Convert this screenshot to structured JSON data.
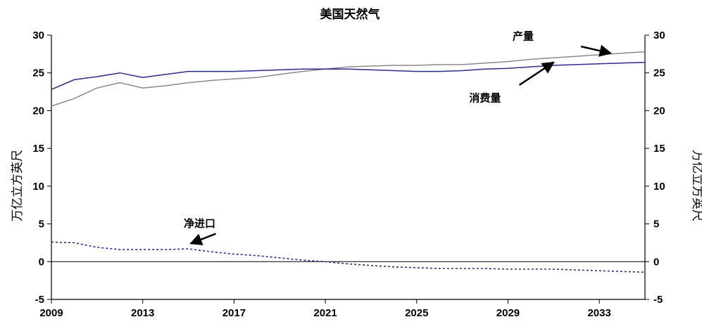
{
  "chart_data": {
    "type": "line",
    "title": "美国天然气",
    "ylabel_left": "万亿立方英尺",
    "ylabel_right": "万亿立方英尺",
    "xlabel": "",
    "ylim": [
      -5,
      30
    ],
    "yticks": [
      "-5",
      "0",
      "5",
      "10",
      "15",
      "20",
      "25",
      "30"
    ],
    "xlim": [
      2009,
      2035
    ],
    "xticks": [
      "2009",
      "2013",
      "2017",
      "2021",
      "2025",
      "2029",
      "2033"
    ],
    "grid": false,
    "x": [
      2009,
      2010,
      2011,
      2012,
      2013,
      2014,
      2015,
      2016,
      2017,
      2018,
      2019,
      2020,
      2021,
      2022,
      2023,
      2024,
      2025,
      2026,
      2027,
      2028,
      2029,
      2030,
      2031,
      2032,
      2033,
      2034,
      2035
    ],
    "series": [
      {
        "name": "产量",
        "color": "#8a8a8a",
        "style": "solid",
        "values": [
          20.6,
          21.6,
          23.0,
          23.7,
          23.0,
          23.3,
          23.7,
          24.0,
          24.2,
          24.4,
          24.8,
          25.2,
          25.5,
          25.8,
          25.9,
          26.0,
          26.0,
          26.1,
          26.1,
          26.3,
          26.5,
          26.8,
          27.0,
          27.2,
          27.4,
          27.6,
          27.8
        ]
      },
      {
        "name": "消费量",
        "color": "#2b2b8a",
        "style": "solid",
        "values": [
          22.8,
          24.1,
          24.5,
          25.0,
          24.4,
          24.8,
          25.2,
          25.2,
          25.2,
          25.3,
          25.4,
          25.5,
          25.5,
          25.5,
          25.4,
          25.3,
          25.2,
          25.2,
          25.3,
          25.5,
          25.6,
          25.8,
          26.0,
          26.1,
          26.2,
          26.3,
          26.4
        ]
      },
      {
        "name": "净进口",
        "color": "#2b2b8a",
        "style": "dashed",
        "values": [
          2.6,
          2.5,
          1.9,
          1.6,
          1.6,
          1.6,
          1.7,
          1.3,
          1.0,
          0.8,
          0.5,
          0.2,
          0.0,
          -0.3,
          -0.5,
          -0.7,
          -0.8,
          -0.9,
          -0.9,
          -0.9,
          -1.0,
          -1.0,
          -1.0,
          -1.1,
          -1.2,
          -1.3,
          -1.4
        ]
      }
    ],
    "annotations": [
      {
        "text": "产量",
        "x": 2029.2,
        "y": 29.4,
        "arrow_from": [
          2032.2,
          28.5
        ],
        "arrow_to": [
          2033.5,
          27.6
        ]
      },
      {
        "text": "消费量",
        "x": 2027.3,
        "y": 21.2,
        "arrow_from": [
          2029.5,
          23.4
        ],
        "arrow_to": [
          2031.0,
          26.4
        ]
      },
      {
        "text": "净进口",
        "x": 2014.8,
        "y": 4.6,
        "arrow_from": [
          2016.2,
          3.7
        ],
        "arrow_to": [
          2015.1,
          2.4
        ]
      }
    ]
  }
}
